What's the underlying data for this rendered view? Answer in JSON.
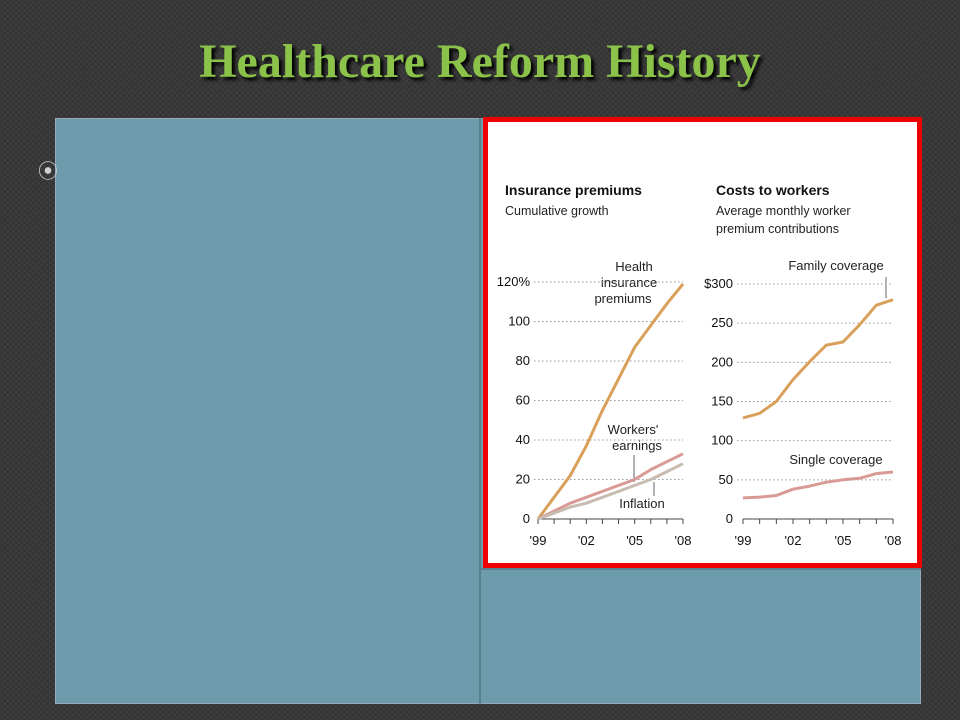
{
  "slide": {
    "title": "Healthcare Reform History",
    "bullet_glyph": "⦿",
    "colors": {
      "title": "#8bc34a",
      "content_bg": "#6c9bab",
      "frame": "#ee0000"
    }
  },
  "chart_data": [
    {
      "type": "line",
      "title": "Insurance premiums",
      "subtitle": "Cumulative growth",
      "x": [
        "'99",
        "'00",
        "'01",
        "'02",
        "'03",
        "'04",
        "'05",
        "'06",
        "'07",
        "'08"
      ],
      "x_tick_labels": [
        "'99",
        "'02",
        "'05",
        "'08"
      ],
      "y_tick_labels": [
        "0",
        "20",
        "40",
        "60",
        "80",
        "100",
        "120%"
      ],
      "ylim": [
        0,
        120
      ],
      "grid": true,
      "series": [
        {
          "name": "Health insurance premiums",
          "color": "#d9a05b",
          "values": [
            0,
            11,
            22,
            37,
            55,
            71,
            87,
            98,
            109,
            119
          ]
        },
        {
          "name": "Workers' earnings",
          "color": "#d99a95",
          "values": [
            0,
            4,
            8,
            11,
            14,
            17,
            20,
            25,
            29,
            33
          ]
        },
        {
          "name": "Inflation",
          "color": "#c8bcb0",
          "values": [
            0,
            3,
            6,
            8,
            11,
            14,
            17,
            20,
            24,
            28
          ]
        }
      ],
      "annotations": [
        {
          "lines": [
            "Health",
            "insurance",
            "premiums"
          ]
        },
        {
          "lines": [
            "Workers'",
            "earnings"
          ]
        },
        {
          "lines": [
            "Inflation"
          ]
        }
      ]
    },
    {
      "type": "line",
      "title": "Costs to workers",
      "subtitle": [
        "Average monthly worker",
        "premium contributions"
      ],
      "x": [
        "'99",
        "'00",
        "'01",
        "'02",
        "'03",
        "'04",
        "'05",
        "'06",
        "'07",
        "'08"
      ],
      "x_tick_labels": [
        "'99",
        "'02",
        "'05",
        "'08"
      ],
      "y_tick_labels": [
        "0",
        "50",
        "100",
        "150",
        "200",
        "250",
        "$300"
      ],
      "ylim": [
        0,
        300
      ],
      "grid": true,
      "series": [
        {
          "name": "Family coverage",
          "color": "#d9a05b",
          "values": [
            129,
            135,
            150,
            178,
            201,
            222,
            226,
            248,
            273,
            280
          ]
        },
        {
          "name": "Single coverage",
          "color": "#d99a95",
          "values": [
            27,
            28,
            30,
            38,
            42,
            47,
            50,
            52,
            58,
            60
          ]
        }
      ],
      "annotations": [
        {
          "lines": [
            "Family coverage"
          ]
        },
        {
          "lines": [
            "Single coverage"
          ]
        }
      ]
    }
  ]
}
